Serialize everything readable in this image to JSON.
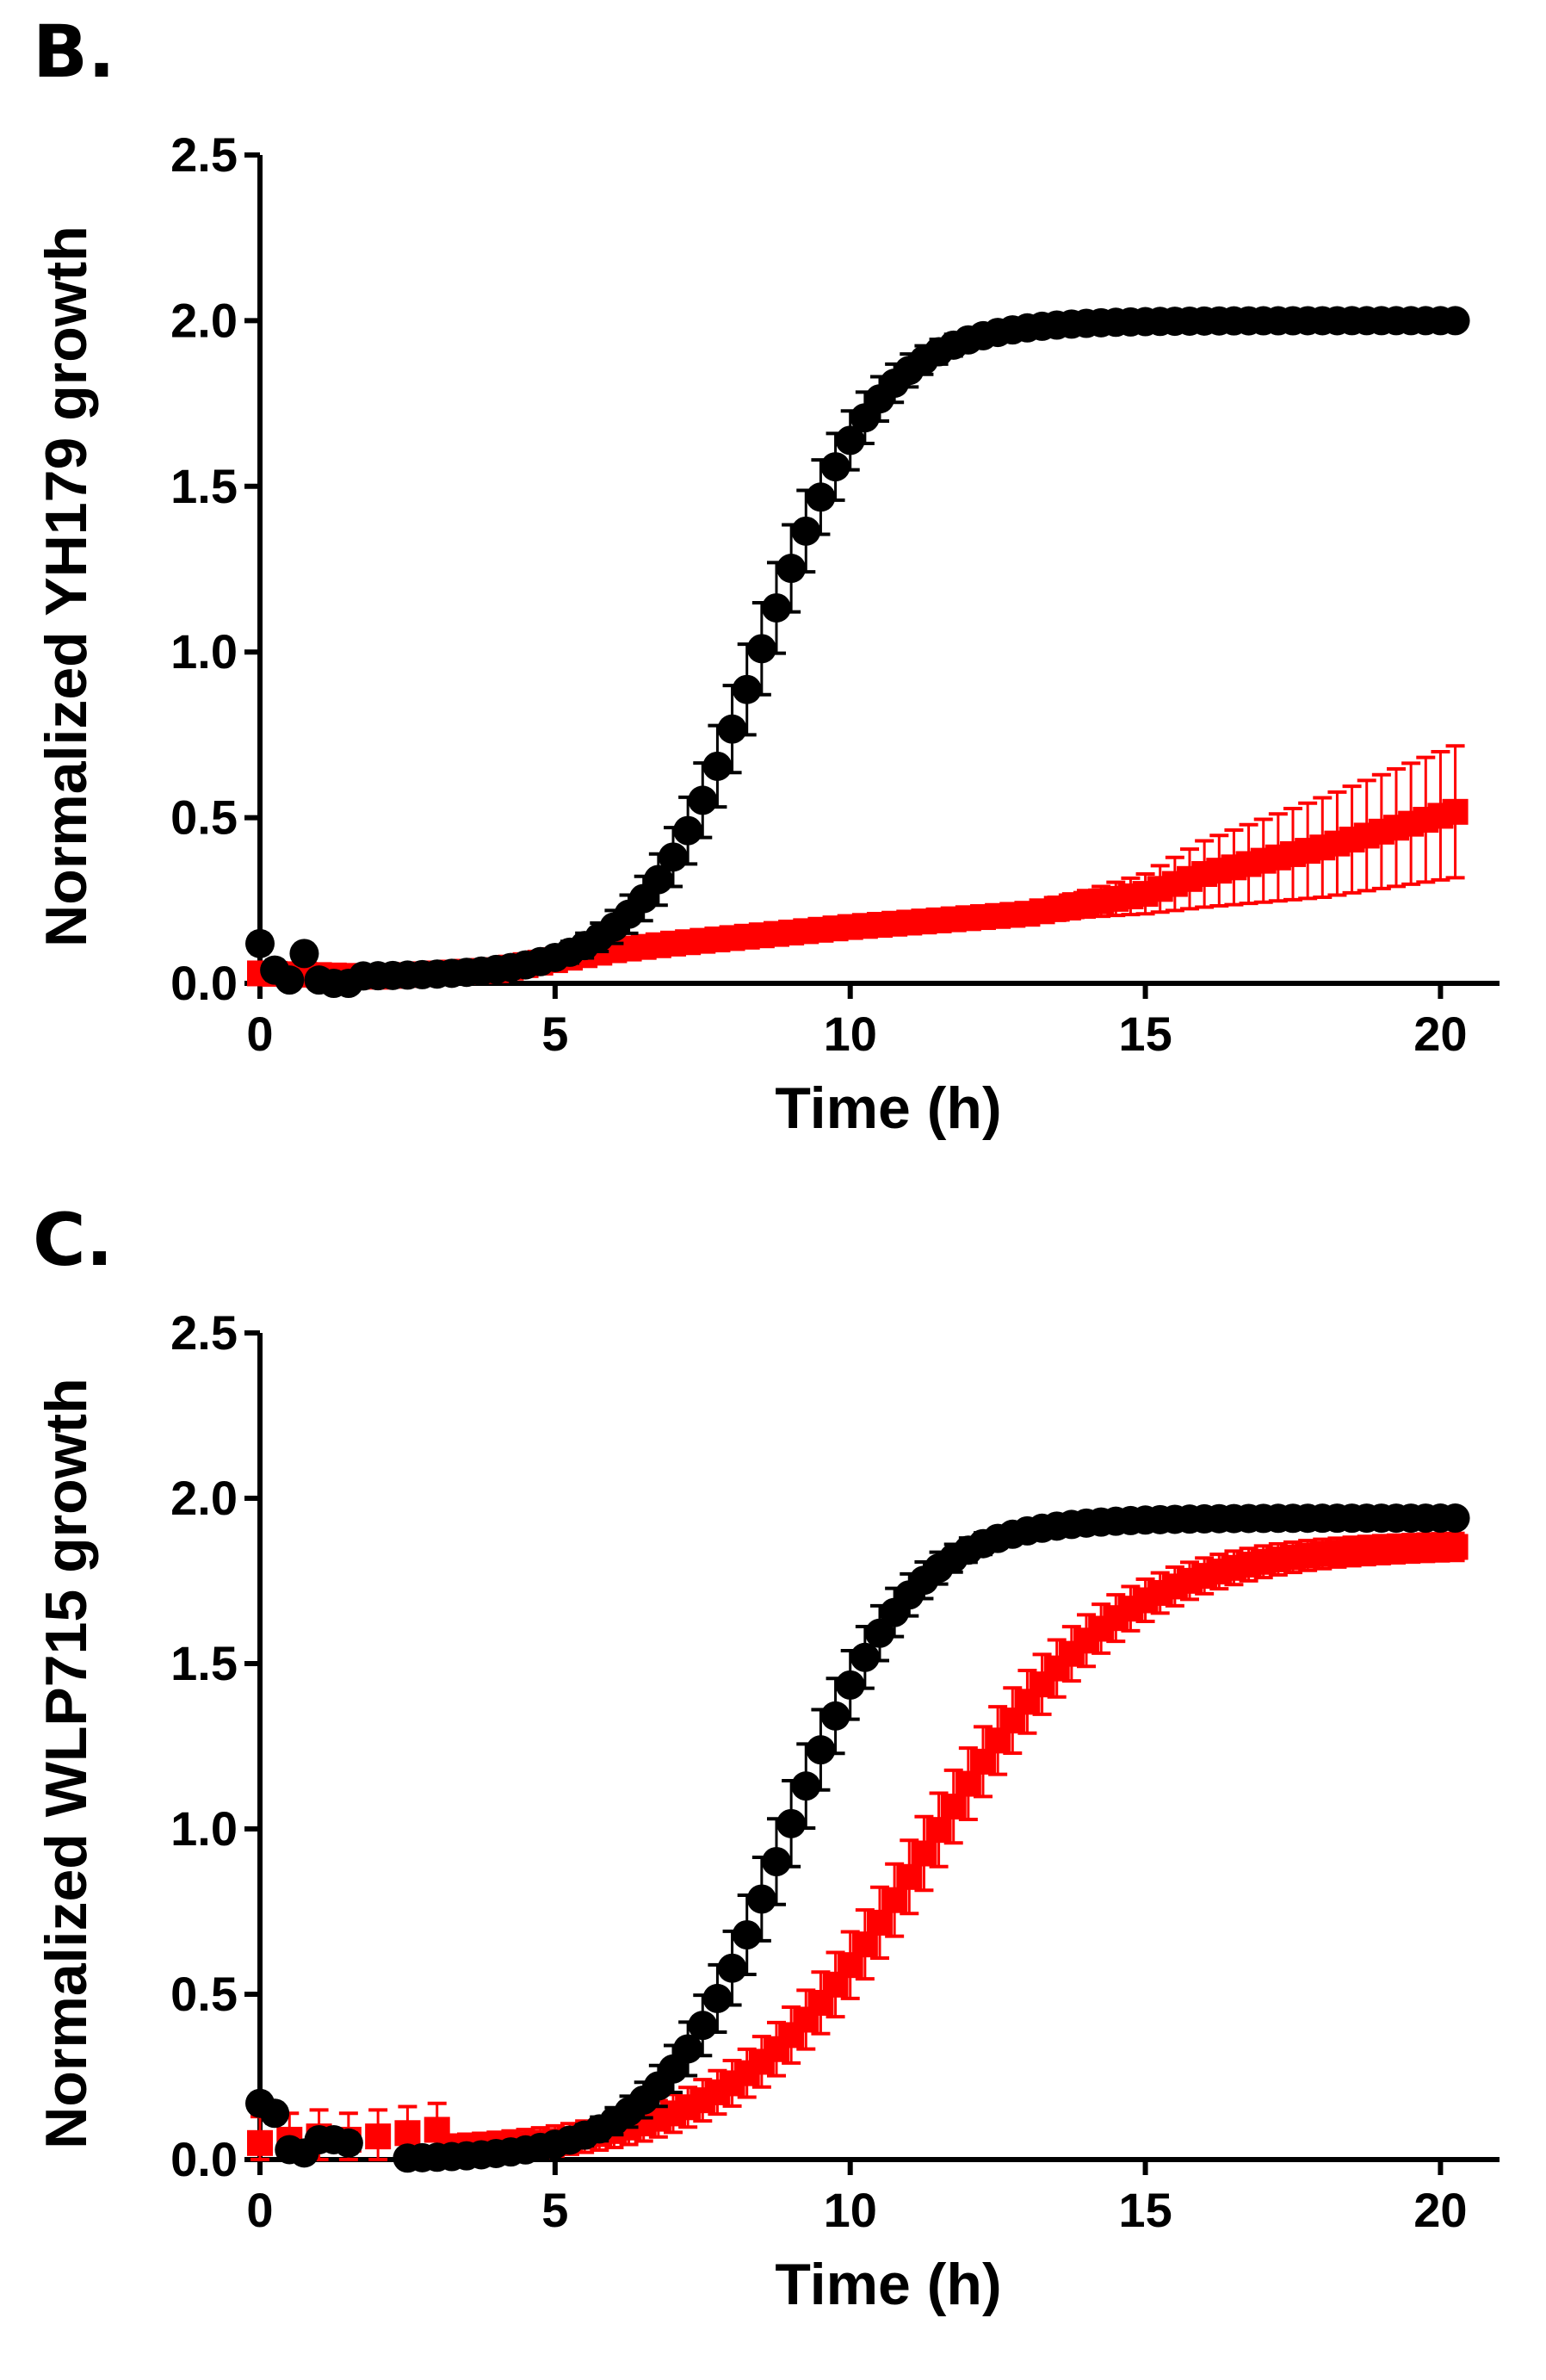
{
  "chart_data": [
    {
      "panel": "B.",
      "type": "scatter",
      "xlabel": "Time (h)",
      "ylabel": "Normalized YH179 growth",
      "xlim": [
        0,
        21
      ],
      "ylim": [
        0,
        2.5
      ],
      "xticks": [
        "0",
        "5",
        "10",
        "15",
        "20"
      ],
      "yticks": [
        "0.0",
        "0.5",
        "1.0",
        "1.5",
        "2.0",
        "2.5"
      ],
      "series": [
        {
          "name": "red",
          "color": "#ff0000",
          "marker": "square",
          "model": "piecewise",
          "anchors": [
            [
              0,
              0.03
            ],
            [
              2,
              0.02
            ],
            [
              4,
              0.04
            ],
            [
              5,
              0.07
            ],
            [
              6,
              0.1
            ],
            [
              7,
              0.12
            ],
            [
              10,
              0.17
            ],
            [
              13,
              0.21
            ],
            [
              15,
              0.27
            ],
            [
              16,
              0.33
            ],
            [
              18,
              0.41
            ],
            [
              20.3,
              0.52
            ]
          ],
          "err_anchors": [
            [
              0,
              0.01
            ],
            [
              12,
              0.02
            ],
            [
              14,
              0.04
            ],
            [
              15,
              0.06
            ],
            [
              16,
              0.1
            ],
            [
              18,
              0.15
            ],
            [
              20.3,
              0.2
            ]
          ],
          "t_start": 0,
          "t_end": 20.3,
          "dt": 0.25
        },
        {
          "name": "black",
          "color": "#000000",
          "marker": "circle",
          "model": "logistic",
          "params": {
            "base": 0.02,
            "amp": 1.98,
            "mid": 8.5,
            "k": 1.0
          },
          "early_points": [
            [
              0,
              0.12
            ],
            [
              0.25,
              0.04
            ],
            [
              0.5,
              0.01
            ],
            [
              0.75,
              0.09
            ],
            [
              1.0,
              0.01
            ],
            [
              1.25,
              0.0
            ],
            [
              1.5,
              0.0
            ]
          ],
          "err": 0.03,
          "t_start": 1.75,
          "t_end": 20.3,
          "dt": 0.25
        }
      ]
    },
    {
      "panel": "C.",
      "type": "scatter",
      "xlabel": "Time (h)",
      "ylabel": "Normalized WLP715 growth",
      "xlim": [
        0,
        21
      ],
      "ylim": [
        0,
        2.5
      ],
      "xticks": [
        "0",
        "5",
        "10",
        "15",
        "20"
      ],
      "yticks": [
        "0.0",
        "0.5",
        "1.0",
        "1.5",
        "2.0",
        "2.5"
      ],
      "series": [
        {
          "name": "red",
          "color": "#ff0000",
          "marker": "square",
          "model": "logistic",
          "params": {
            "base": 0.02,
            "amp": 1.84,
            "mid": 11.3,
            "k": 0.62
          },
          "early_points": [
            [
              0,
              0.05
            ],
            [
              0.5,
              0.06
            ],
            [
              1.0,
              0.07
            ],
            [
              1.5,
              0.06
            ],
            [
              2.0,
              0.07
            ],
            [
              2.5,
              0.08
            ],
            [
              3.0,
              0.09
            ]
          ],
          "err": 0.08,
          "t_start": 3.25,
          "t_end": 20.3,
          "dt": 0.25
        },
        {
          "name": "black",
          "color": "#000000",
          "marker": "circle",
          "model": "logistic",
          "params": {
            "base": 0.0,
            "amp": 1.94,
            "mid": 8.9,
            "k": 0.95
          },
          "early_points": [
            [
              0,
              0.17
            ],
            [
              0.25,
              0.14
            ],
            [
              0.5,
              0.03
            ],
            [
              0.75,
              0.02
            ],
            [
              1.0,
              0.06
            ],
            [
              1.25,
              0.06
            ],
            [
              1.5,
              0.05
            ]
          ],
          "err": 0.03,
          "t_start": 2.5,
          "t_end": 20.3,
          "dt": 0.25
        }
      ]
    }
  ]
}
